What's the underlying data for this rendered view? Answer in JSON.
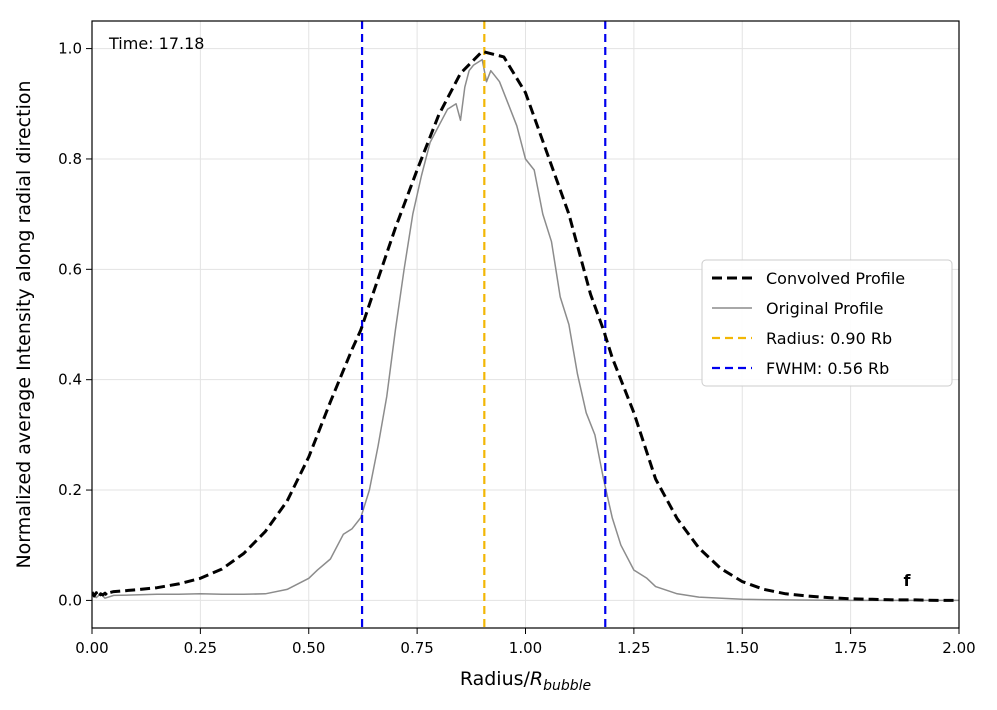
{
  "chart_data": {
    "type": "line",
    "title": "",
    "xlabel": "Radius/",
    "xlabel_sym": "R",
    "xlabel_sub": "bubble",
    "ylabel": "Normalized average Intensity along radial direction",
    "xlim": [
      0.0,
      2.0
    ],
    "ylim": [
      -0.05,
      1.05
    ],
    "xticks": [
      0.0,
      0.25,
      0.5,
      0.75,
      1.0,
      1.25,
      1.5,
      1.75,
      2.0
    ],
    "xtick_labels": [
      "0.00",
      "0.25",
      "0.50",
      "0.75",
      "1.00",
      "1.25",
      "1.50",
      "1.75",
      "2.00"
    ],
    "yticks": [
      0.0,
      0.2,
      0.4,
      0.6,
      0.8,
      1.0
    ],
    "ytick_labels": [
      "0.0",
      "0.2",
      "0.4",
      "0.6",
      "0.8",
      "1.0"
    ],
    "grid": true,
    "legend_position": "center-right",
    "annotation_time": "Time: 17.18",
    "annotation_mark": "f",
    "series": [
      {
        "name": "Convolved Profile",
        "style": "dashed",
        "color": "#000000",
        "x": [
          0.0,
          0.005,
          0.01,
          0.015,
          0.02,
          0.025,
          0.03,
          0.035,
          0.04,
          0.05,
          0.1,
          0.15,
          0.2,
          0.25,
          0.3,
          0.35,
          0.4,
          0.45,
          0.5,
          0.55,
          0.6,
          0.62,
          0.65,
          0.7,
          0.75,
          0.8,
          0.85,
          0.9,
          0.95,
          1.0,
          1.05,
          1.1,
          1.15,
          1.18,
          1.2,
          1.25,
          1.3,
          1.35,
          1.4,
          1.45,
          1.5,
          1.55,
          1.6,
          1.65,
          1.7,
          1.75,
          1.8,
          1.85,
          1.9,
          1.95,
          2.0
        ],
        "y": [
          0.015,
          0.008,
          0.014,
          0.006,
          0.012,
          0.01,
          0.013,
          0.009,
          0.014,
          0.016,
          0.019,
          0.023,
          0.03,
          0.04,
          0.057,
          0.085,
          0.125,
          0.18,
          0.26,
          0.36,
          0.455,
          0.49,
          0.56,
          0.675,
          0.78,
          0.88,
          0.955,
          0.995,
          0.985,
          0.92,
          0.81,
          0.7,
          0.555,
          0.49,
          0.44,
          0.34,
          0.22,
          0.148,
          0.095,
          0.058,
          0.034,
          0.02,
          0.012,
          0.008,
          0.005,
          0.003,
          0.002,
          0.001,
          0.001,
          0.0,
          0.0
        ]
      },
      {
        "name": "Original Profile",
        "style": "solid",
        "color": "#8c8c8c",
        "x": [
          0.0,
          0.01,
          0.02,
          0.03,
          0.05,
          0.1,
          0.15,
          0.2,
          0.25,
          0.3,
          0.35,
          0.4,
          0.45,
          0.5,
          0.52,
          0.55,
          0.58,
          0.6,
          0.62,
          0.64,
          0.66,
          0.68,
          0.7,
          0.72,
          0.74,
          0.76,
          0.78,
          0.8,
          0.82,
          0.84,
          0.85,
          0.86,
          0.87,
          0.88,
          0.9,
          0.91,
          0.92,
          0.93,
          0.94,
          0.96,
          0.98,
          1.0,
          1.02,
          1.04,
          1.06,
          1.08,
          1.1,
          1.12,
          1.14,
          1.16,
          1.18,
          1.2,
          1.22,
          1.25,
          1.28,
          1.3,
          1.35,
          1.4,
          1.5,
          1.6,
          1.75,
          2.0
        ],
        "y": [
          0.01,
          0.005,
          0.012,
          0.004,
          0.009,
          0.01,
          0.011,
          0.011,
          0.012,
          0.011,
          0.011,
          0.012,
          0.02,
          0.04,
          0.055,
          0.075,
          0.12,
          0.13,
          0.15,
          0.2,
          0.28,
          0.37,
          0.49,
          0.6,
          0.7,
          0.77,
          0.83,
          0.86,
          0.89,
          0.9,
          0.87,
          0.93,
          0.96,
          0.97,
          0.98,
          0.94,
          0.96,
          0.95,
          0.94,
          0.9,
          0.86,
          0.8,
          0.78,
          0.7,
          0.65,
          0.55,
          0.5,
          0.41,
          0.34,
          0.3,
          0.22,
          0.15,
          0.1,
          0.055,
          0.04,
          0.025,
          0.012,
          0.006,
          0.002,
          0.001,
          0.0,
          0.0
        ]
      },
      {
        "name": "Radius: 0.90 Rb",
        "style": "dashed-vertical",
        "color": "#f2b705",
        "x_value": 0.905
      },
      {
        "name": "FWHM: 0.56 Rb",
        "style": "dashed-vertical",
        "color": "#0000ee",
        "x_values": [
          0.623,
          1.184
        ]
      }
    ]
  }
}
